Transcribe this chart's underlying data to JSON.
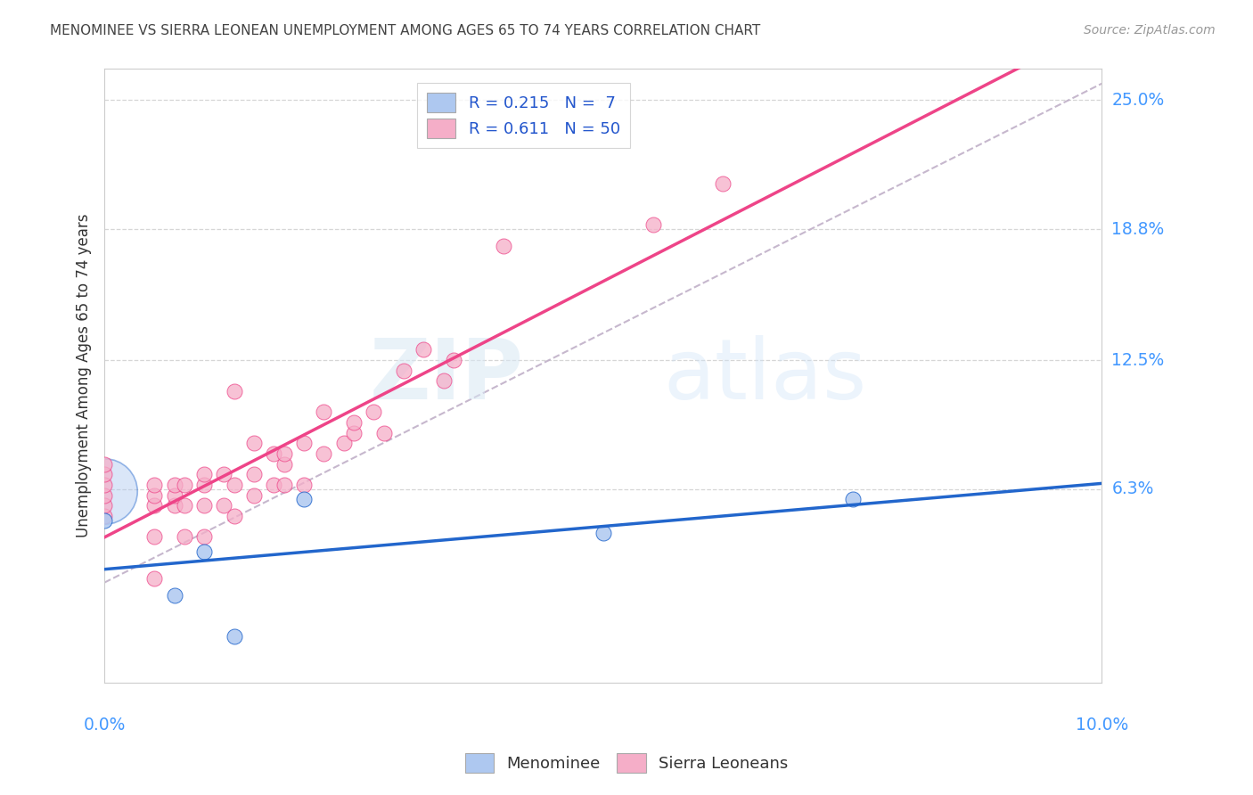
{
  "title": "MENOMINEE VS SIERRA LEONEAN UNEMPLOYMENT AMONG AGES 65 TO 74 YEARS CORRELATION CHART",
  "source": "Source: ZipAtlas.com",
  "xlabel_bottom_left": "0.0%",
  "xlabel_bottom_right": "10.0%",
  "ylabel": "Unemployment Among Ages 65 to 74 years",
  "ytick_labels": [
    "6.3%",
    "12.5%",
    "18.8%",
    "25.0%"
  ],
  "ytick_values": [
    0.063,
    0.125,
    0.188,
    0.25
  ],
  "xlim": [
    0.0,
    0.1
  ],
  "ylim": [
    -0.03,
    0.265
  ],
  "menominee_color": "#aec8f0",
  "sierra_leonean_color": "#f5aec8",
  "menominee_line_color": "#2266cc",
  "sierra_leonean_line_color": "#ee4488",
  "dashed_line_color": "#c0b0c8",
  "R_menominee": 0.215,
  "N_menominee": 7,
  "R_sierra": 0.611,
  "N_sierra": 50,
  "legend_label_1": "Menominee",
  "legend_label_2": "Sierra Leoneans",
  "menominee_x": [
    0.0,
    0.007,
    0.01,
    0.013,
    0.02,
    0.05,
    0.075
  ],
  "menominee_y": [
    0.048,
    0.012,
    0.033,
    -0.008,
    0.058,
    0.042,
    0.058
  ],
  "sierra_x": [
    0.0,
    0.0,
    0.0,
    0.0,
    0.0,
    0.0,
    0.005,
    0.005,
    0.005,
    0.005,
    0.005,
    0.007,
    0.007,
    0.007,
    0.008,
    0.008,
    0.008,
    0.01,
    0.01,
    0.01,
    0.01,
    0.012,
    0.012,
    0.013,
    0.013,
    0.013,
    0.015,
    0.015,
    0.015,
    0.017,
    0.017,
    0.018,
    0.018,
    0.018,
    0.02,
    0.02,
    0.022,
    0.022,
    0.024,
    0.025,
    0.025,
    0.027,
    0.028,
    0.03,
    0.032,
    0.034,
    0.035,
    0.04,
    0.055,
    0.062
  ],
  "sierra_y": [
    0.05,
    0.055,
    0.06,
    0.065,
    0.07,
    0.075,
    0.02,
    0.04,
    0.055,
    0.06,
    0.065,
    0.055,
    0.06,
    0.065,
    0.04,
    0.055,
    0.065,
    0.04,
    0.055,
    0.065,
    0.07,
    0.055,
    0.07,
    0.05,
    0.065,
    0.11,
    0.06,
    0.07,
    0.085,
    0.065,
    0.08,
    0.065,
    0.075,
    0.08,
    0.065,
    0.085,
    0.08,
    0.1,
    0.085,
    0.09,
    0.095,
    0.1,
    0.09,
    0.12,
    0.13,
    0.115,
    0.125,
    0.18,
    0.19,
    0.21
  ],
  "watermark_zip": "ZIP",
  "watermark_atlas": "atlas",
  "background_color": "#ffffff",
  "grid_color": "#cccccc"
}
